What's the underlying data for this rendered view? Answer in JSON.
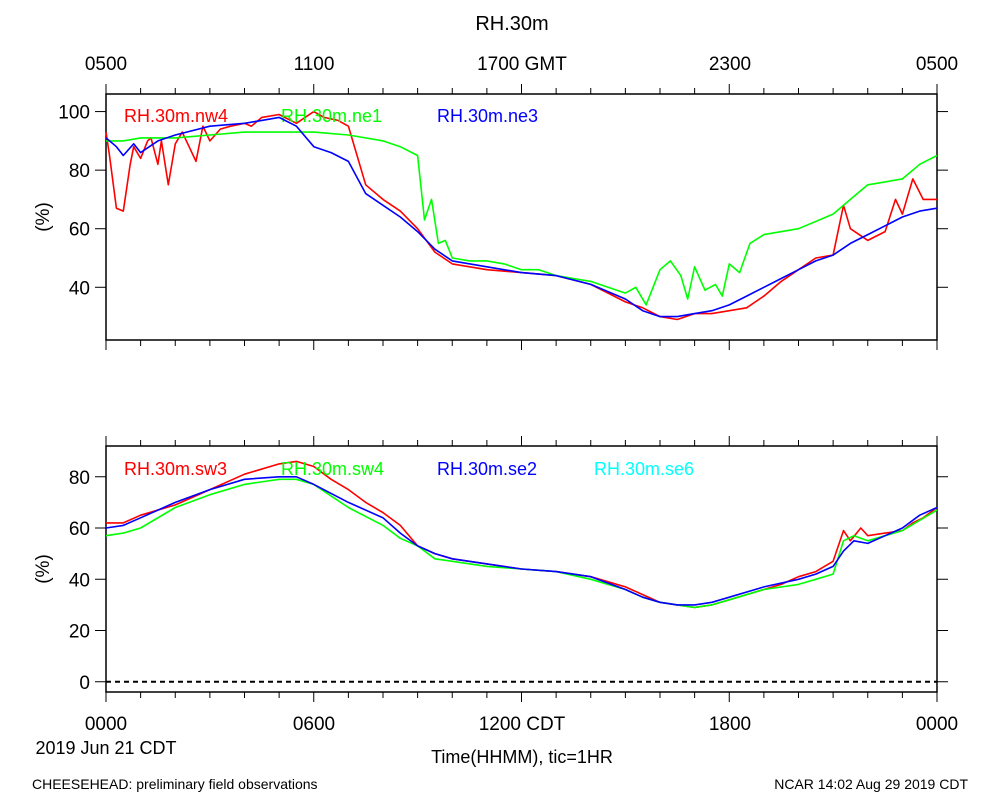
{
  "title": "RH.30m",
  "top_axis": {
    "labels": [
      "0500",
      "1100",
      "1700 GMT",
      "2300",
      "0500"
    ]
  },
  "bottom_axis": {
    "labels": [
      "0000",
      "0600",
      "1200 CDT",
      "1800",
      "0000"
    ],
    "date_label": "2019 Jun 21 CDT",
    "xlabel": "Time(HHMM), tic=1HR"
  },
  "footer": {
    "left": "CHEESEHEAD: preliminary field observations",
    "right": "NCAR 14:02 Aug 29 2019 CDT"
  },
  "chart_data": [
    {
      "type": "line",
      "ylabel": "(%)",
      "ylim": [
        22,
        106
      ],
      "yticks": [
        40,
        60,
        80,
        100
      ],
      "xlim": [
        0,
        24
      ],
      "series": [
        {
          "name": "RH.30m.nw4",
          "color": "#ff0000",
          "x": [
            0,
            0.1,
            0.3,
            0.5,
            0.7,
            0.8,
            1.0,
            1.2,
            1.3,
            1.5,
            1.6,
            1.8,
            2.0,
            2.2,
            2.4,
            2.6,
            2.8,
            3.0,
            3.3,
            3.6,
            4.0,
            4.2,
            4.5,
            5.0,
            5.5,
            6.0,
            6.3,
            6.7,
            7.0,
            7.5,
            8.0,
            8.5,
            9.0,
            9.5,
            10.0,
            11.0,
            12.0,
            13.0,
            14.0,
            15.0,
            15.5,
            16.0,
            16.5,
            17.0,
            17.5,
            18.0,
            18.5,
            19.0,
            19.5,
            20.0,
            20.5,
            21.0,
            21.3,
            21.5,
            22.0,
            22.5,
            22.8,
            23.0,
            23.3,
            23.6,
            24.0
          ],
          "values": [
            93,
            85,
            67,
            66,
            82,
            88,
            84,
            90,
            91,
            82,
            90,
            75,
            89,
            93,
            88,
            83,
            95,
            90,
            94,
            95,
            96,
            95,
            98,
            99,
            96,
            100,
            98,
            97,
            95,
            75,
            70,
            66,
            60,
            52,
            48,
            46,
            45,
            44,
            41,
            35,
            33,
            30,
            29,
            31,
            31,
            32,
            33,
            37,
            42,
            46,
            50,
            51,
            68,
            60,
            56,
            59,
            70,
            65,
            77,
            70,
            70
          ]
        },
        {
          "name": "RH.30m.ne1",
          "color": "#00ff00",
          "x": [
            0,
            0.5,
            1.0,
            2.0,
            3.0,
            4.0,
            5.0,
            6.0,
            7.0,
            8.0,
            8.5,
            9.0,
            9.2,
            9.4,
            9.6,
            9.8,
            10.0,
            10.5,
            11.0,
            11.5,
            12.0,
            12.5,
            13.0,
            13.5,
            14.0,
            14.5,
            15.0,
            15.3,
            15.6,
            16.0,
            16.3,
            16.6,
            16.8,
            17.0,
            17.3,
            17.6,
            17.8,
            18.0,
            18.3,
            18.6,
            19.0,
            20.0,
            21.0,
            21.5,
            22.0,
            22.5,
            23.0,
            23.5,
            24.0
          ],
          "values": [
            90,
            90,
            91,
            91,
            92,
            93,
            93,
            93,
            92,
            90,
            88,
            85,
            63,
            70,
            55,
            56,
            50,
            49,
            49,
            48,
            46,
            46,
            44,
            43,
            42,
            40,
            38,
            40,
            34,
            46,
            49,
            44,
            36,
            47,
            39,
            41,
            37,
            48,
            45,
            55,
            58,
            60,
            65,
            70,
            75,
            76,
            77,
            82,
            85
          ]
        },
        {
          "name": "RH.30m.ne3",
          "color": "#0000ff",
          "x": [
            0,
            0.3,
            0.5,
            0.8,
            1.0,
            1.5,
            2.0,
            3.0,
            4.0,
            4.5,
            5.0,
            5.5,
            6.0,
            6.5,
            7.0,
            7.5,
            8.0,
            8.5,
            9.0,
            9.5,
            10.0,
            11.0,
            12.0,
            13.0,
            14.0,
            15.0,
            15.5,
            16.0,
            16.5,
            17.0,
            17.5,
            18.0,
            18.5,
            19.0,
            19.5,
            20.0,
            20.5,
            21.0,
            21.5,
            22.0,
            22.5,
            23.0,
            23.5,
            24.0
          ],
          "values": [
            91,
            88,
            85,
            89,
            86,
            90,
            92,
            95,
            96,
            97,
            98,
            95,
            88,
            86,
            83,
            72,
            68,
            64,
            59,
            53,
            49,
            47,
            45,
            44,
            41,
            36,
            32,
            30,
            30,
            31,
            32,
            34,
            37,
            40,
            43,
            46,
            49,
            51,
            55,
            58,
            61,
            64,
            66,
            67
          ]
        }
      ]
    },
    {
      "type": "line",
      "ylabel": "(%)",
      "ylim": [
        -4,
        92
      ],
      "yticks": [
        0,
        20,
        40,
        60,
        80
      ],
      "xlim": [
        0,
        24
      ],
      "series": [
        {
          "name": "RH.30m.sw3",
          "color": "#ff0000",
          "x": [
            0,
            0.5,
            1.0,
            2.0,
            3.0,
            4.0,
            5.0,
            5.5,
            6.0,
            6.5,
            7.0,
            7.5,
            8.0,
            8.5,
            9.0,
            9.5,
            10.0,
            11.0,
            12.0,
            13.0,
            14.0,
            14.5,
            15.0,
            15.5,
            16.0,
            16.5,
            17.0,
            17.5,
            18.0,
            18.5,
            19.0,
            19.5,
            20.0,
            20.5,
            21.0,
            21.3,
            21.5,
            21.8,
            22.0,
            22.5,
            23.0,
            23.3,
            23.6,
            24.0
          ],
          "values": [
            62,
            62,
            65,
            69,
            75,
            81,
            85,
            86,
            84,
            79,
            75,
            70,
            66,
            61,
            53,
            50,
            48,
            46,
            44,
            43,
            41,
            39,
            37,
            34,
            31,
            30,
            29,
            30,
            32,
            34,
            36,
            38,
            41,
            43,
            47,
            59,
            55,
            60,
            57,
            58,
            59,
            62,
            64,
            68
          ]
        },
        {
          "name": "RH.30m.sw4",
          "color": "#00ff00",
          "x": [
            0,
            0.5,
            1.0,
            2.0,
            3.0,
            4.0,
            5.0,
            5.5,
            6.0,
            7.0,
            8.0,
            8.5,
            9.0,
            9.5,
            10.0,
            11.0,
            12.0,
            13.0,
            14.0,
            15.0,
            15.5,
            16.0,
            16.5,
            17.0,
            17.5,
            18.0,
            19.0,
            20.0,
            20.5,
            21.0,
            21.3,
            21.6,
            22.0,
            22.5,
            23.0,
            23.5,
            24.0
          ],
          "values": [
            57,
            58,
            60,
            68,
            73,
            77,
            79,
            79,
            77,
            68,
            61,
            56,
            53,
            48,
            47,
            45,
            44,
            43,
            40,
            36,
            33,
            31,
            30,
            29,
            30,
            32,
            36,
            38,
            40,
            42,
            55,
            57,
            55,
            57,
            59,
            63,
            67
          ]
        },
        {
          "name": "RH.30m.se2",
          "color": "#0000ff",
          "x": [
            0,
            0.5,
            1.0,
            2.0,
            3.0,
            4.0,
            5.0,
            5.5,
            6.0,
            7.0,
            8.0,
            8.5,
            9.0,
            9.5,
            10.0,
            11.0,
            12.0,
            13.0,
            14.0,
            15.0,
            15.5,
            16.0,
            16.5,
            17.0,
            17.5,
            18.0,
            19.0,
            20.0,
            20.5,
            21.0,
            21.3,
            21.6,
            22.0,
            22.5,
            23.0,
            23.5,
            24.0
          ],
          "values": [
            60,
            61,
            64,
            70,
            75,
            79,
            80,
            80,
            77,
            70,
            64,
            58,
            53,
            50,
            48,
            46,
            44,
            43,
            41,
            36,
            33,
            31,
            30,
            30,
            31,
            33,
            37,
            40,
            42,
            45,
            51,
            55,
            54,
            57,
            60,
            65,
            68
          ]
        },
        {
          "name": "RH.30m.se6",
          "color": "#00ffff",
          "x": [
            0,
            24
          ],
          "values": [
            0,
            0
          ]
        }
      ]
    }
  ]
}
